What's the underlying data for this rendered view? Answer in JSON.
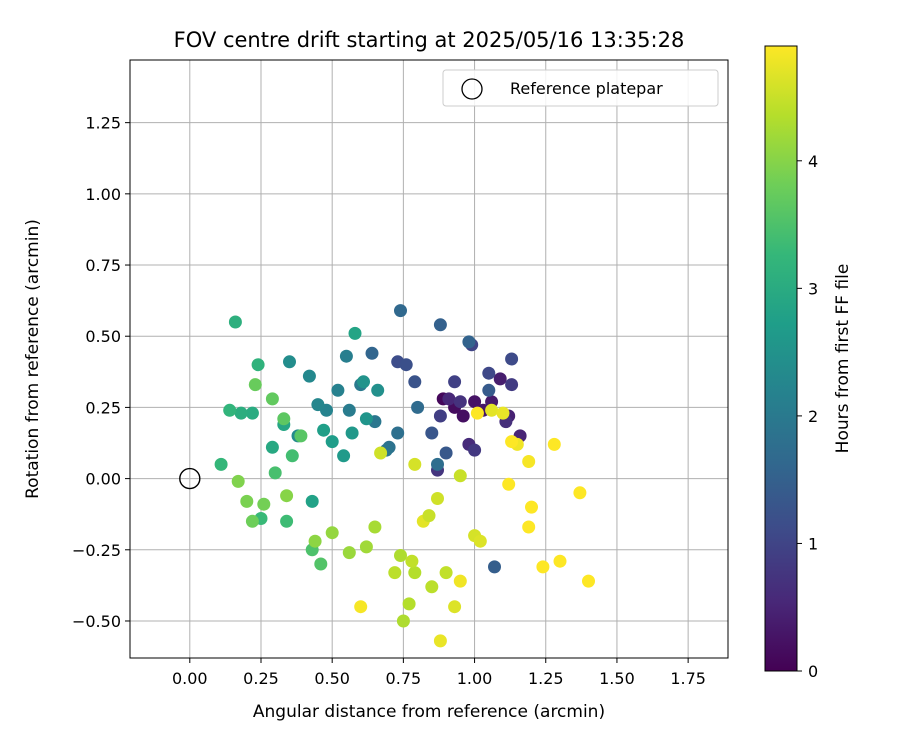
{
  "chart_data": {
    "type": "scatter",
    "title": "FOV centre drift starting at 2025/05/16 13:35:28",
    "xlabel": "Angular distance from reference (arcmin)",
    "ylabel": "Rotation from reference (arcmin)",
    "xlim": [
      -0.21,
      1.89
    ],
    "ylim": [
      -0.63,
      1.47
    ],
    "x_ticks": [
      "0.00",
      "0.25",
      "0.50",
      "0.75",
      "1.00",
      "1.25",
      "1.50",
      "1.75"
    ],
    "y_ticks": [
      "−0.50",
      "−0.25",
      "0.00",
      "0.25",
      "0.50",
      "0.75",
      "1.00",
      "1.25"
    ],
    "grid": true,
    "legend": {
      "placement": "top-right",
      "entries": [
        "Reference platepar"
      ]
    },
    "colorbar": {
      "label": "Hours from first FF file",
      "range": [
        0,
        4.9
      ],
      "ticks": [
        "0",
        "1",
        "2",
        "3",
        "4"
      ],
      "colormap": "viridis"
    },
    "reference_point": {
      "x": 0.0,
      "y": 0.0
    },
    "series": [
      {
        "hours": [
          0.1,
          0.15,
          0.2,
          0.25,
          0.3,
          0.35,
          0.4,
          0.45,
          0.5,
          0.55,
          0.6,
          0.65,
          0.7,
          0.75,
          0.8,
          0.85
        ],
        "x": [
          0.89,
          0.93,
          0.96,
          1.0,
          1.03,
          1.06,
          1.09,
          1.12,
          1.16,
          0.91,
          0.98,
          1.11,
          0.95,
          0.87,
          1.0,
          1.13
        ],
        "y": [
          0.28,
          0.25,
          0.22,
          0.27,
          0.24,
          0.27,
          0.35,
          0.22,
          0.15,
          0.28,
          0.12,
          0.2,
          0.27,
          0.03,
          0.1,
          0.33
        ]
      },
      {
        "hours": [
          0.9,
          0.95,
          1.0,
          1.05,
          1.1,
          1.15,
          1.2,
          1.25,
          1.3,
          1.35,
          1.4,
          1.45,
          1.5,
          1.55,
          1.6,
          1.65,
          1.7,
          1.75
        ],
        "x": [
          0.88,
          0.93,
          0.99,
          1.05,
          1.13,
          0.73,
          0.76,
          0.79,
          0.85,
          0.9,
          1.05,
          1.07,
          0.88,
          0.98,
          0.64,
          0.74,
          0.8,
          0.87
        ],
        "y": [
          0.22,
          0.34,
          0.47,
          0.37,
          0.42,
          0.41,
          0.4,
          0.34,
          0.16,
          0.09,
          0.31,
          -0.31,
          0.54,
          0.48,
          0.44,
          0.59,
          0.25,
          0.05
        ]
      },
      {
        "hours": [
          1.8,
          1.85,
          1.9,
          1.95,
          2.0,
          2.05,
          2.1,
          2.15,
          2.2,
          2.25,
          2.3,
          2.35,
          2.4,
          2.45,
          2.5,
          2.55,
          2.6,
          2.65,
          2.7,
          2.75,
          2.8,
          2.85
        ],
        "x": [
          0.73,
          0.7,
          0.69,
          0.65,
          0.6,
          0.56,
          0.55,
          0.52,
          0.48,
          0.45,
          0.42,
          0.38,
          0.35,
          0.66,
          0.61,
          0.62,
          0.57,
          0.54,
          0.5,
          0.47,
          0.43,
          0.58
        ],
        "y": [
          0.16,
          0.11,
          0.1,
          0.2,
          0.33,
          0.24,
          0.43,
          0.31,
          0.24,
          0.26,
          0.36,
          0.15,
          0.41,
          0.31,
          0.34,
          0.21,
          0.16,
          0.08,
          0.13,
          0.17,
          -0.08,
          0.51
        ]
      },
      {
        "hours": [
          2.9,
          2.95,
          3.0,
          3.05,
          3.1,
          3.15,
          3.2,
          3.25,
          3.3,
          3.35,
          3.4,
          3.45,
          3.5,
          3.55,
          3.6,
          3.65,
          3.7,
          3.75,
          3.8,
          3.85,
          3.9,
          3.95,
          4.0,
          4.05
        ],
        "x": [
          0.33,
          0.29,
          0.22,
          0.18,
          0.16,
          0.24,
          0.14,
          0.11,
          0.25,
          0.34,
          0.36,
          0.3,
          0.43,
          0.46,
          0.39,
          0.33,
          0.29,
          0.23,
          0.22,
          0.26,
          0.2,
          0.17,
          0.34,
          0.44
        ],
        "y": [
          0.19,
          0.11,
          0.23,
          0.23,
          0.55,
          0.4,
          0.24,
          0.05,
          -0.14,
          -0.15,
          0.08,
          0.02,
          -0.25,
          -0.3,
          0.15,
          0.21,
          0.28,
          0.33,
          -0.15,
          -0.09,
          -0.08,
          -0.01,
          -0.06,
          -0.22
        ]
      },
      {
        "hours": [
          4.1,
          4.15,
          4.2,
          4.25,
          4.3,
          4.35,
          4.4,
          4.45,
          4.5,
          4.55,
          4.6,
          4.65,
          4.7,
          4.75,
          4.8,
          4.85
        ],
        "x": [
          0.5,
          0.56,
          0.62,
          0.65,
          0.74,
          0.79,
          0.85,
          0.9,
          0.95,
          0.67,
          0.79,
          0.93,
          0.82,
          0.88,
          0.95,
          0.6
        ],
        "y": [
          -0.19,
          -0.26,
          -0.24,
          -0.17,
          -0.27,
          -0.33,
          -0.38,
          -0.33,
          0.01,
          0.09,
          0.05,
          -0.45,
          -0.15,
          -0.57,
          -0.36,
          -0.45
        ]
      },
      {
        "hours": [
          4.3,
          4.35,
          4.4,
          4.45,
          4.5,
          4.55,
          4.6,
          4.65,
          4.7,
          4.75,
          4.8,
          4.85,
          4.9,
          4.9,
          4.9,
          4.9,
          4.9,
          4.9,
          4.9,
          4.9,
          4.9,
          4.9
        ],
        "x": [
          0.75,
          0.77,
          0.72,
          0.78,
          0.84,
          0.87,
          1.0,
          1.02,
          1.06,
          1.1,
          1.15,
          1.19,
          1.2,
          1.12,
          1.28,
          1.37,
          1.24,
          1.3,
          1.4,
          1.01,
          1.19,
          1.13
        ],
        "y": [
          -0.5,
          -0.44,
          -0.33,
          -0.29,
          -0.13,
          -0.07,
          -0.2,
          -0.22,
          0.24,
          0.23,
          0.12,
          0.06,
          -0.1,
          -0.02,
          0.12,
          -0.05,
          -0.31,
          -0.29,
          -0.36,
          0.23,
          -0.17,
          0.13
        ]
      }
    ]
  }
}
